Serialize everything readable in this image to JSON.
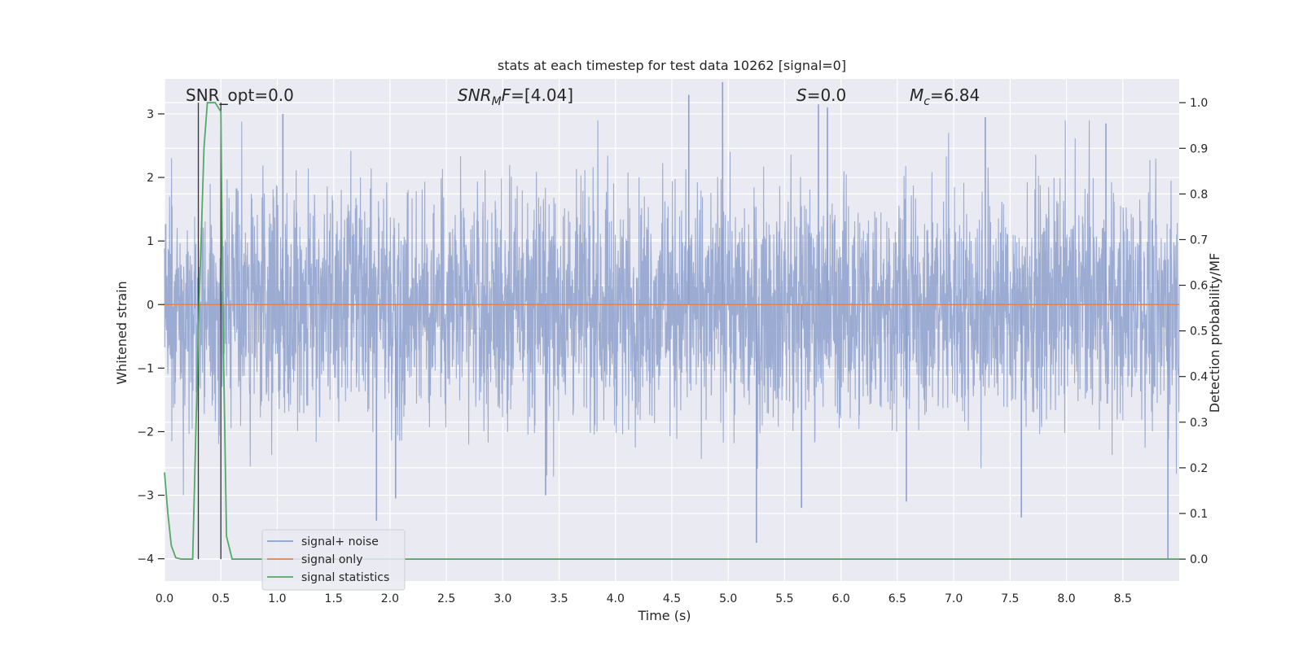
{
  "chart_data": {
    "type": "line",
    "title": "stats at each timestep for test data 10262 [signal=0]",
    "xlabel": "Time (s)",
    "ylabel_left": "Whitened strain",
    "ylabel_right": "Detection probability/MF",
    "xlim": [
      0.0,
      9.0
    ],
    "ylim_left": [
      -4.35,
      3.55
    ],
    "ylim_right": [
      -0.048,
      1.052
    ],
    "x_ticks": [
      "0.0",
      "0.5",
      "1.0",
      "1.5",
      "2.0",
      "2.5",
      "3.0",
      "3.5",
      "4.0",
      "4.5",
      "5.0",
      "5.5",
      "6.0",
      "6.5",
      "7.0",
      "7.5",
      "8.0",
      "8.5"
    ],
    "y_ticks_left": [
      "−4",
      "−3",
      "−2",
      "−1",
      "0",
      "1",
      "2",
      "3"
    ],
    "y_ticks_right": [
      "0.0",
      "0.1",
      "0.2",
      "0.3",
      "0.4",
      "0.5",
      "0.6",
      "0.7",
      "0.8",
      "0.9",
      "1.0"
    ],
    "grid": true,
    "background": "#eaeaf2",
    "annotations": [
      {
        "id": "snr-opt",
        "parts": [
          {
            "t": "SNR_opt=0.0",
            "i": false
          }
        ]
      },
      {
        "id": "snr-mf",
        "parts": [
          {
            "t": "SNR",
            "i": true
          },
          {
            "t": "M",
            "i": true,
            "sub": true
          },
          {
            "t": "F",
            "i": true
          },
          {
            "t": "=[4.04]",
            "i": false
          }
        ]
      },
      {
        "id": "s",
        "parts": [
          {
            "t": "S",
            "i": true
          },
          {
            "t": "=0.0",
            "i": false
          }
        ]
      },
      {
        "id": "mc",
        "parts": [
          {
            "t": "M",
            "i": true
          },
          {
            "t": "c",
            "i": true,
            "sub": true
          },
          {
            "t": "=6.84",
            "i": false
          }
        ]
      }
    ],
    "vlines_x": [
      0.3,
      0.5
    ],
    "series": [
      {
        "name": "signal+ noise",
        "color": "#8da0cb",
        "axis": "left",
        "style": "noise",
        "x_range": [
          0.0,
          9.0
        ],
        "typical_band": [
          -1.8,
          1.9
        ],
        "peaks": [
          {
            "x": 1.05,
            "y": 3.0
          },
          {
            "x": 1.88,
            "y": -3.4
          },
          {
            "x": 2.05,
            "y": -3.05
          },
          {
            "x": 3.38,
            "y": -3.0
          },
          {
            "x": 4.65,
            "y": 3.3
          },
          {
            "x": 4.95,
            "y": 3.5
          },
          {
            "x": 5.25,
            "y": -3.75
          },
          {
            "x": 5.8,
            "y": 3.15
          },
          {
            "x": 5.88,
            "y": 3.1
          },
          {
            "x": 5.65,
            "y": -3.2
          },
          {
            "x": 7.6,
            "y": -3.35
          },
          {
            "x": 8.9,
            "y": -4.0
          },
          {
            "x": 7.28,
            "y": 2.95
          },
          {
            "x": 8.35,
            "y": 2.85
          },
          {
            "x": 6.58,
            "y": -3.1
          }
        ]
      },
      {
        "name": "signal only",
        "color": "#dd8452",
        "axis": "left",
        "x": [
          0.0,
          9.0
        ],
        "values": [
          0.0,
          0.0
        ]
      },
      {
        "name": "signal statistics",
        "color": "#55a868",
        "axis": "right",
        "x": [
          0.0,
          0.03,
          0.06,
          0.1,
          0.15,
          0.25,
          0.3,
          0.35,
          0.38,
          0.42,
          0.45,
          0.5,
          0.52,
          0.55,
          0.6,
          0.7,
          9.0
        ],
        "values": [
          0.19,
          0.1,
          0.03,
          0.003,
          0.0,
          0.0,
          0.5,
          0.9,
          1.0,
          1.0,
          1.0,
          0.98,
          0.5,
          0.05,
          0.0,
          0.0,
          0.0
        ]
      }
    ],
    "legend": {
      "placement": "lower-left",
      "entries": [
        {
          "label": "signal+ noise",
          "color": "#8da0cb"
        },
        {
          "label": "signal only",
          "color": "#dd8452"
        },
        {
          "label": "signal statistics",
          "color": "#55a868"
        }
      ]
    }
  }
}
